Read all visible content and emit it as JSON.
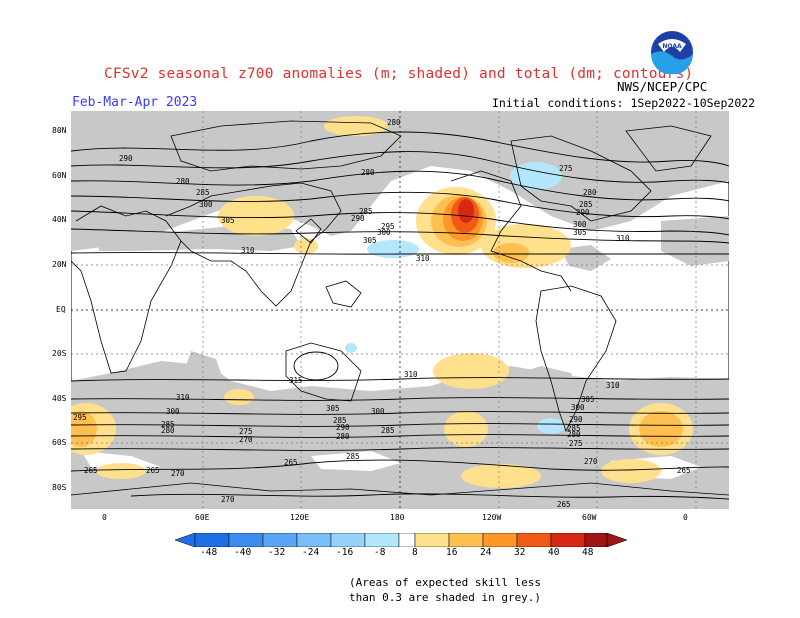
{
  "header": {
    "title": "CFSv2 seasonal z700 anomalies (m; shaded) and total (dm; contours)",
    "period": "Feb-Mar-Apr 2023",
    "initial_conditions": "Initial conditions: 1Sep2022-10Sep2022",
    "agency": "NWS/NCEP/CPC",
    "logo_text": "NOAA"
  },
  "map": {
    "lat_labels": [
      "80N",
      "60N",
      "40N",
      "20N",
      "EQ",
      "20S",
      "40S",
      "60S",
      "80S"
    ],
    "lon_labels": [
      "0",
      "60E",
      "120E",
      "180",
      "120W",
      "60W",
      "0"
    ],
    "contour_labels": [
      "280",
      "285",
      "290",
      "295",
      "300",
      "305",
      "310",
      "315",
      "275",
      "270",
      "265"
    ],
    "skill_mask_color": "#c8c8c8"
  },
  "colorbar": {
    "ticks": [
      "-48",
      "-40",
      "-32",
      "-24",
      "-16",
      "-8",
      "8",
      "16",
      "24",
      "32",
      "40",
      "48"
    ],
    "colors": [
      "#1e6ee6",
      "#3c8cf0",
      "#5aa5f5",
      "#78bef8",
      "#96d2fa",
      "#b4e6fc",
      "#ffffff",
      "#ffe08c",
      "#ffc050",
      "#ff9628",
      "#f05a14",
      "#d72814",
      "#a01414"
    ]
  },
  "note": {
    "line1": "(Areas of expected skill less",
    "line2": "than 0.3 are shaded in grey.)"
  }
}
